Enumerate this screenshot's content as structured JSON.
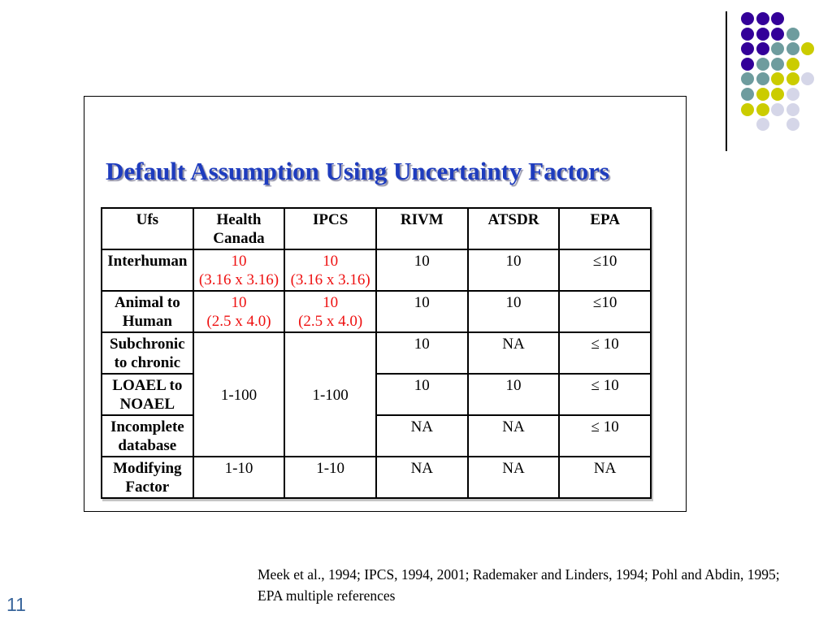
{
  "slide": {
    "page_number": "11",
    "title": "Default Assumption Using Uncertainty Factors",
    "footer": {
      "line1": "Meek et al., 1994; IPCS, 1994, 2001; Rademaker and Linders, 1994; Pohl and Abdin, 1995;",
      "line2": "EPA multiple references"
    }
  },
  "table": {
    "headers": [
      "Ufs",
      "Health\nCanada",
      "IPCS",
      "RIVM",
      "ATSDR",
      "EPA"
    ],
    "rows": [
      {
        "label": "Interhuman",
        "cells": [
          "10\n(3.16 x 3.16)",
          "10\n(3.16 x 3.16)",
          "10",
          "10",
          "≤10"
        ]
      },
      {
        "label": "Animal to\nHuman",
        "cells": [
          "10\n(2.5 x 4.0)",
          "10\n(2.5 x 4.0)",
          "10",
          "10",
          "≤10"
        ]
      },
      {
        "label": "Subchronic\nto chronic",
        "merged_hc": "1-100",
        "merged_ipcs": "1-100",
        "cells": [
          "10",
          "NA",
          "≤ 10"
        ]
      },
      {
        "label": "LOAEL to\nNOAEL",
        "cells": [
          "10",
          "10",
          "≤ 10"
        ]
      },
      {
        "label": "Incomplete\ndatabase",
        "cells": [
          "NA",
          "NA",
          "≤ 10"
        ]
      },
      {
        "label": "Modifying\nFactor",
        "cells": [
          "1-10",
          "1-10",
          "NA",
          "NA",
          "NA"
        ]
      }
    ]
  },
  "colors": {
    "title_blue": "#1E3CBE",
    "value_red": "#EE1111",
    "page_number_blue": "#38659B",
    "border_black": "#000000"
  },
  "decoration": {
    "dot_colors": {
      "P": "#330099",
      "T": "#6E9C9E",
      "Y": "#CBCC00",
      "L": "#D5D6E8"
    },
    "dot_grid": [
      "PPP..",
      "PPPT.",
      "PPTTY",
      "PTTY.",
      "TTYYL",
      "TYYL.",
      "YYLL.",
      ".L.L."
    ]
  }
}
